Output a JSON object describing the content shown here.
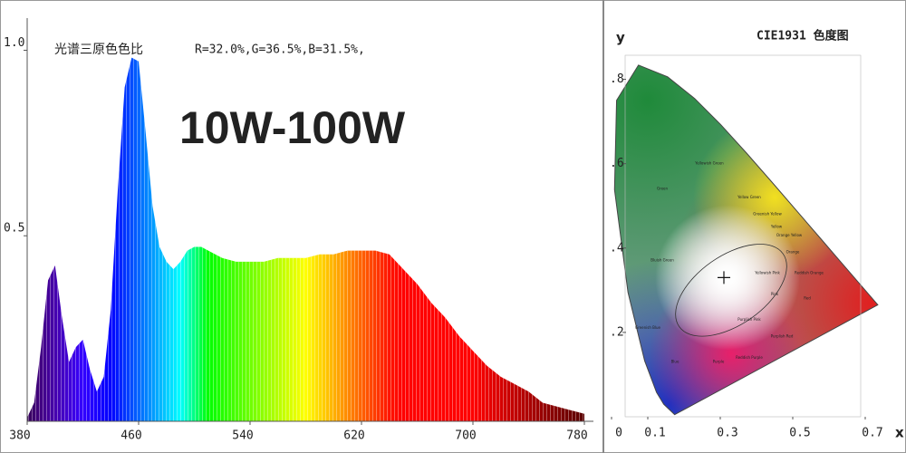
{
  "chart_data": [
    {
      "type": "area",
      "title": "光谱三原色色比",
      "subtitle": "R=32.0%,G=36.5%,B=31.5%,",
      "annotation": "10W-100W",
      "x": [
        380,
        385,
        390,
        395,
        400,
        405,
        410,
        415,
        420,
        425,
        430,
        435,
        440,
        445,
        450,
        455,
        460,
        465,
        470,
        475,
        480,
        485,
        490,
        495,
        500,
        505,
        510,
        520,
        530,
        540,
        550,
        560,
        570,
        580,
        590,
        600,
        610,
        620,
        630,
        640,
        650,
        660,
        670,
        680,
        690,
        700,
        710,
        720,
        730,
        740,
        750,
        760,
        770,
        780
      ],
      "values": [
        0.01,
        0.05,
        0.2,
        0.38,
        0.42,
        0.28,
        0.16,
        0.2,
        0.22,
        0.14,
        0.08,
        0.12,
        0.3,
        0.62,
        0.9,
        0.98,
        0.97,
        0.78,
        0.58,
        0.47,
        0.43,
        0.41,
        0.43,
        0.46,
        0.47,
        0.47,
        0.46,
        0.44,
        0.43,
        0.43,
        0.43,
        0.44,
        0.44,
        0.44,
        0.45,
        0.45,
        0.46,
        0.46,
        0.46,
        0.45,
        0.41,
        0.37,
        0.32,
        0.28,
        0.23,
        0.19,
        0.15,
        0.12,
        0.1,
        0.08,
        0.05,
        0.04,
        0.03,
        0.02
      ],
      "xlim": [
        380,
        780
      ],
      "xticks": [
        380,
        460,
        540,
        620,
        700,
        780
      ],
      "ylim": [
        0,
        1.05
      ],
      "yticks": [
        0.5,
        {
          "value": 1,
          "label": "1.0"
        }
      ]
    },
    {
      "type": "chromaticity",
      "title": "CIE1931 色度图",
      "x_label": "x",
      "y_label": "y",
      "x": [
        0.1741,
        0.144,
        0.1241,
        0.0913,
        0.0454,
        0.0082,
        0.0139,
        0.0743,
        0.1547,
        0.2296,
        0.3016,
        0.3731,
        0.4441,
        0.5125,
        0.5752,
        0.627,
        0.6915,
        0.719,
        0.7347
      ],
      "y": [
        0.005,
        0.0297,
        0.0578,
        0.1327,
        0.295,
        0.5384,
        0.7502,
        0.8338,
        0.8059,
        0.7543,
        0.6923,
        0.6245,
        0.5547,
        0.4866,
        0.4242,
        0.3725,
        0.3083,
        0.2809,
        0.2653
      ],
      "white_point": [
        0.31,
        0.33
      ],
      "regions": [
        {
          "label": "Green",
          "x": 0.14,
          "y": 0.54
        },
        {
          "label": "Yellowish Green",
          "x": 0.27,
          "y": 0.6
        },
        {
          "label": "Yellow Green",
          "x": 0.38,
          "y": 0.52
        },
        {
          "label": "Greenish Yellow",
          "x": 0.43,
          "y": 0.48
        },
        {
          "label": "Yellow",
          "x": 0.455,
          "y": 0.45
        },
        {
          "label": "Orange Yellow",
          "x": 0.49,
          "y": 0.43
        },
        {
          "label": "Orange",
          "x": 0.5,
          "y": 0.39
        },
        {
          "label": "Reddish Orange",
          "x": 0.545,
          "y": 0.34
        },
        {
          "label": "Red",
          "x": 0.54,
          "y": 0.28
        },
        {
          "label": "Yellowish Pink",
          "x": 0.43,
          "y": 0.34
        },
        {
          "label": "Pink",
          "x": 0.45,
          "y": 0.29
        },
        {
          "label": "Purplish Pink",
          "x": 0.38,
          "y": 0.23
        },
        {
          "label": "Purplish Red",
          "x": 0.47,
          "y": 0.19
        },
        {
          "label": "Reddish Purple",
          "x": 0.38,
          "y": 0.14
        },
        {
          "label": "Purple",
          "x": 0.295,
          "y": 0.13
        },
        {
          "label": "Bluish Green",
          "x": 0.14,
          "y": 0.37
        },
        {
          "label": "Greenish Blue",
          "x": 0.1,
          "y": 0.21
        },
        {
          "label": "Blue",
          "x": 0.175,
          "y": 0.13
        }
      ],
      "xlim": [
        0,
        0.8
      ],
      "xticks": [
        0,
        {
          "value": 0.1,
          "label": "0.1"
        },
        {
          "value": 0.3,
          "label": "0.3"
        },
        {
          "value": 0.5,
          "label": "0.5"
        },
        {
          "value": 0.7,
          "label": "0.7"
        }
      ],
      "ylim": [
        0,
        0.9
      ],
      "yticks": [
        {
          "value": 0.2,
          "label": ".2"
        },
        {
          "value": 0.4,
          "label": ".4"
        },
        {
          "value": 0.6,
          "label": ".6"
        },
        {
          "value": 0.8,
          "label": ".8"
        }
      ]
    }
  ]
}
